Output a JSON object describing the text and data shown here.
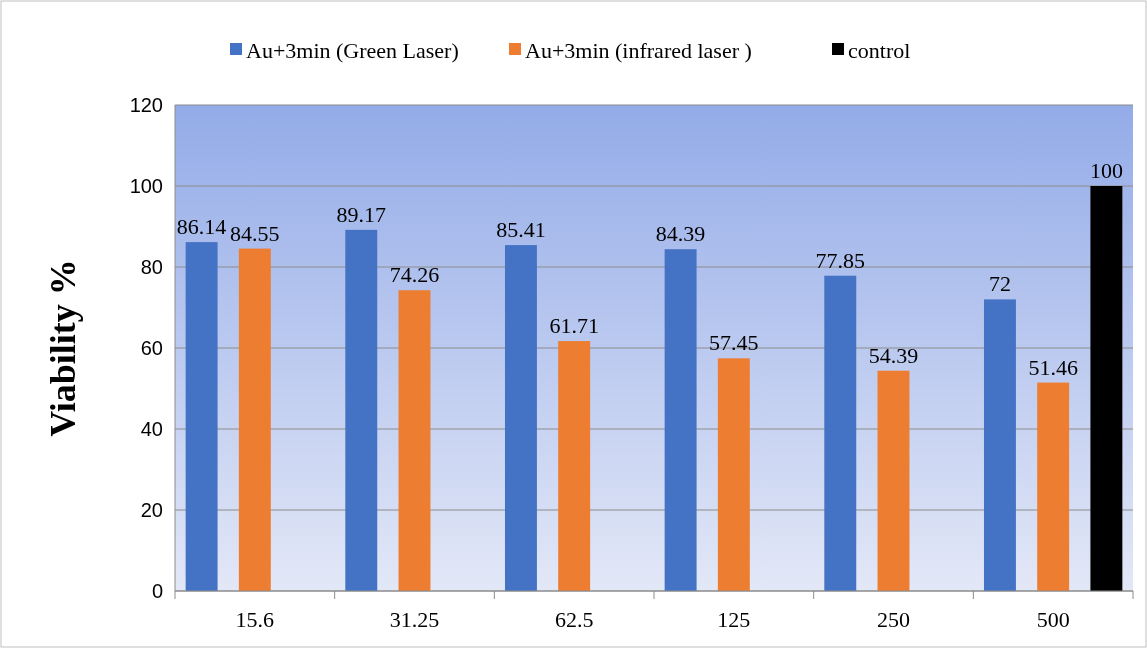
{
  "chart_data": {
    "type": "bar",
    "ylabel": "Viability %",
    "categories": [
      "15.6",
      "31.25",
      "62.5",
      "125",
      "250",
      "500"
    ],
    "series": [
      {
        "name": "Au+3min (Green Laser)",
        "color": "#4472c4",
        "values": [
          86.14,
          89.17,
          85.41,
          84.39,
          77.85,
          72
        ]
      },
      {
        "name": "Au+3min (infrared laser )",
        "color": "#ed7d31",
        "values": [
          84.55,
          74.26,
          61.71,
          57.45,
          54.39,
          51.46
        ]
      },
      {
        "name": "control",
        "color": "#000000",
        "values": [
          null,
          null,
          null,
          null,
          null,
          100
        ]
      }
    ],
    "ylim": [
      0,
      120
    ],
    "yticks": [
      0,
      20,
      40,
      60,
      80,
      100,
      120
    ],
    "grid": "y",
    "legend": "top",
    "data_labels": true
  }
}
